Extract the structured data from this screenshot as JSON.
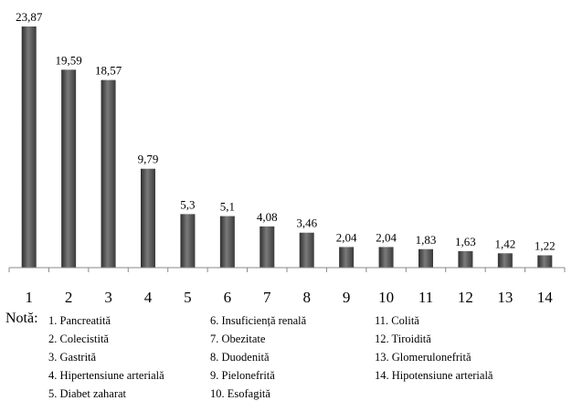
{
  "chart_data": {
    "type": "bar",
    "categories": [
      "1",
      "2",
      "3",
      "4",
      "5",
      "6",
      "7",
      "8",
      "9",
      "10",
      "11",
      "12",
      "13",
      "14"
    ],
    "values": [
      23.87,
      19.59,
      18.57,
      9.79,
      5.3,
      5.1,
      4.08,
      3.46,
      2.04,
      2.04,
      1.83,
      1.63,
      1.42,
      1.22
    ],
    "value_labels": [
      "23,87",
      "19,59",
      "18,57",
      "9,79",
      "5,3",
      "5,1",
      "4,08",
      "3,46",
      "2,04",
      "2,04",
      "1,83",
      "1,63",
      "1,42",
      "1,22"
    ],
    "title": "",
    "xlabel": "",
    "ylabel": "",
    "ylim": [
      0,
      24
    ],
    "grid": false,
    "bar_color": "#4a4a4a"
  },
  "note": {
    "heading": "Notă:",
    "columns": [
      [
        "1. Pancreatită",
        "2. Colecistită",
        "3. Gastrită",
        "4. Hipertensiune arterială",
        "5. Diabet zaharat"
      ],
      [
        "6. Insuficiență renală",
        "7. Obezitate",
        "8. Duodenită",
        "9. Pielonefrită",
        "10. Esofagită"
      ],
      [
        "11. Colită",
        "12. Tiroidită",
        "13. Glomerulonefrită",
        "14. Hipotensiune arterială"
      ]
    ]
  }
}
